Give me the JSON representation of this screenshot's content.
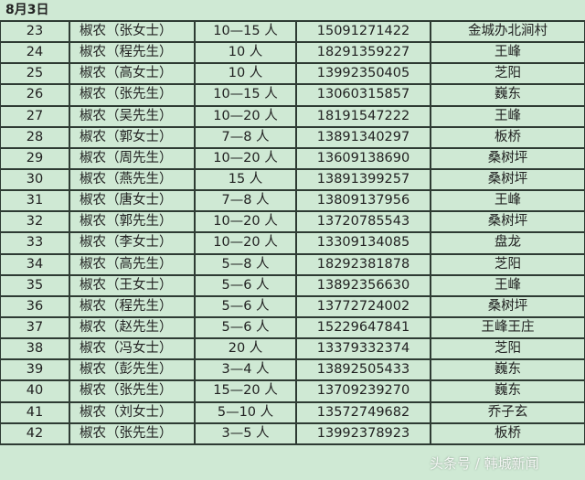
{
  "title": "8月3日",
  "rows": [
    {
      "no": "23",
      "name": "椒农（张女士）",
      "people": "10—15 人",
      "phone": "15091271422",
      "place": "金城办北涧村"
    },
    {
      "no": "24",
      "name": "椒农（程先生）",
      "people": "10 人",
      "phone": "18291359227",
      "place": "王峰"
    },
    {
      "no": "25",
      "name": "椒农（高女士）",
      "people": "10 人",
      "phone": "13992350405",
      "place": "芝阳"
    },
    {
      "no": "26",
      "name": "椒农（张先生）",
      "people": "10—15 人",
      "phone": "13060315857",
      "place": "巍东"
    },
    {
      "no": "27",
      "name": "椒农（吴先生）",
      "people": "10—20 人",
      "phone": "18191547222",
      "place": "王峰"
    },
    {
      "no": "28",
      "name": "椒农（郭女士）",
      "people": "7—8 人",
      "phone": "13891340297",
      "place": "板桥"
    },
    {
      "no": "29",
      "name": "椒农（周先生）",
      "people": "10—20 人",
      "phone": "13609138690",
      "place": "桑树坪"
    },
    {
      "no": "30",
      "name": "椒农（燕先生）",
      "people": "15 人",
      "phone": "13891399257",
      "place": "桑树坪"
    },
    {
      "no": "31",
      "name": "椒农（唐女士）",
      "people": "7—8 人",
      "phone": "13809137956",
      "place": "王峰"
    },
    {
      "no": "32",
      "name": "椒农（郭先生）",
      "people": "10—20 人",
      "phone": "13720785543",
      "place": "桑树坪"
    },
    {
      "no": "33",
      "name": "椒农（李女士）",
      "people": "10—20 人",
      "phone": "13309134085",
      "place": "盘龙"
    },
    {
      "no": "34",
      "name": "椒农（高先生）",
      "people": "5—8 人",
      "phone": "18292381878",
      "place": "芝阳"
    },
    {
      "no": "35",
      "name": "椒农（王女士）",
      "people": "5—6 人",
      "phone": "13892356630",
      "place": "王峰"
    },
    {
      "no": "36",
      "name": "椒农（程先生）",
      "people": "5—6 人",
      "phone": "13772724002",
      "place": "桑树坪"
    },
    {
      "no": "37",
      "name": "椒农（赵先生）",
      "people": "5—6 人",
      "phone": "15229647841",
      "place": "王峰王庄"
    },
    {
      "no": "38",
      "name": "椒农（冯女士）",
      "people": "20 人",
      "phone": "13379332374",
      "place": "芝阳"
    },
    {
      "no": "39",
      "name": "椒农（彭先生）",
      "people": "3—4 人",
      "phone": "13892505433",
      "place": "巍东"
    },
    {
      "no": "40",
      "name": "椒农（张先生）",
      "people": "15—20 人",
      "phone": "13709239270",
      "place": "巍东"
    },
    {
      "no": "41",
      "name": "椒农（刘女士）",
      "people": "5—10 人",
      "phone": "13572749682",
      "place": "乔子玄"
    },
    {
      "no": "42",
      "name": "椒农（张先生）",
      "people": "3—5 人",
      "phone": "13992378923",
      "place": "板桥"
    }
  ],
  "watermark": "头条号 / 韩城新闻"
}
